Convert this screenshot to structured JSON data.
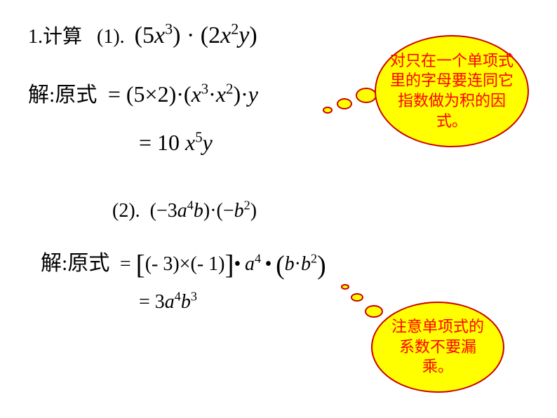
{
  "problem1": {
    "prefix_cn": "1.计算",
    "label": "(1).",
    "expr_left": "(5",
    "var_x": "x",
    "exp_3": "3",
    "expr_mid": ")·(2",
    "exp_2": "2",
    "var_y": "y",
    "expr_end": ")"
  },
  "solution1": {
    "label_cn": "解:原式",
    "eq1_a": "= (5×2)·(",
    "eq1_b": "·",
    "eq1_c": ")·",
    "eq2_a": "= 10 ",
    "exp_5": "5"
  },
  "problem2": {
    "label": "(2).",
    "expr_a": "(−3",
    "var_a": "a",
    "exp_4": "4",
    "var_b": "b",
    "expr_b": ")·(−",
    "exp_2": "2",
    "expr_c": ")"
  },
  "solution2": {
    "label_cn": "解:原式",
    "eq1_a": "= ",
    "eq1_b": "(- 3)×(- 1)",
    "eq1_c": "• a",
    "eq1_d": " • ",
    "eq1_e": "b·b",
    "eq2": "= 3a",
    "eq2_b": "b",
    "exp_3": "3"
  },
  "callout1_text": "对只在一个单项式里的字母要连同它指数做为积的因式。",
  "callout2_text": "注意单项式的系数不要漏乘。",
  "colors": {
    "callout_bg": "#ffff00",
    "callout_border": "#cc0000",
    "callout_text": "#ff0000",
    "page_bg": "#ffffff",
    "text": "#000000"
  }
}
